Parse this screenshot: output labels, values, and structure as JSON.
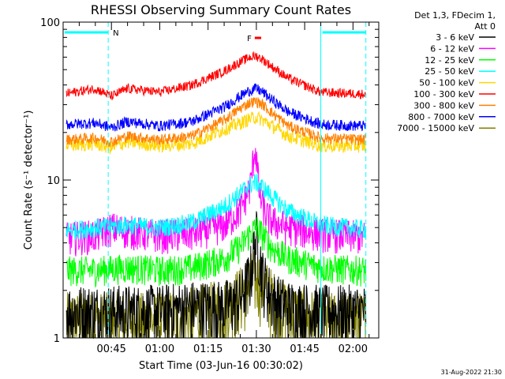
{
  "chart_data": {
    "type": "line",
    "title": "RHESSI Observing Summary Count Rates",
    "xlabel": "Start Time (03-Jun-16 00:30:02)",
    "ylabel": "Count Rate (s⁻¹ detector⁻¹)",
    "y_scale": "log",
    "ylim": [
      1,
      100
    ],
    "xlim_minutes": [
      30.0,
      128.0
    ],
    "x_ticks": [
      {
        "label": "00:45",
        "minute": 45
      },
      {
        "label": "01:00",
        "minute": 60
      },
      {
        "label": "01:15",
        "minute": 75
      },
      {
        "label": "01:30",
        "minute": 90
      },
      {
        "label": "01:45",
        "minute": 105
      },
      {
        "label": "02:00",
        "minute": 120
      }
    ],
    "y_ticks": [
      {
        "label": "1",
        "value": 1
      },
      {
        "label": "10",
        "value": 10
      },
      {
        "label": "100",
        "value": 100
      }
    ],
    "legend_header": [
      "Det 1,3, FDecim 1,",
      "Att 0"
    ],
    "legend_placement": "right",
    "night_bars": [
      {
        "label": "N",
        "start_minute": 30.0,
        "end_minute": 44.0
      },
      {
        "label": "",
        "start_minute": 110.0,
        "end_minute": 124.0
      }
    ],
    "flare_marker": {
      "label": "F",
      "start_minute": 89.5,
      "end_minute": 91.5
    },
    "series": [
      {
        "name": "3 - 6 keV",
        "color": "#000000",
        "minutes": [
          30,
          40,
          50,
          60,
          70,
          80,
          85,
          88,
          90,
          92,
          95,
          100,
          110,
          124
        ],
        "values": [
          1.5,
          1.5,
          1.5,
          1.5,
          1.6,
          1.6,
          1.8,
          2.5,
          4.5,
          2.5,
          1.8,
          1.6,
          1.5,
          1.5
        ]
      },
      {
        "name": "6 - 12 keV",
        "color": "#ff00ff",
        "minutes": [
          30,
          40,
          45,
          50,
          60,
          70,
          80,
          85,
          88,
          89.5,
          90,
          91,
          93,
          95,
          100,
          110,
          124
        ],
        "values": [
          4.3,
          4.5,
          5.0,
          4.8,
          4.5,
          4.6,
          5.2,
          6.5,
          9.0,
          16.0,
          14.0,
          8.0,
          6.0,
          5.5,
          5.0,
          4.6,
          4.4
        ]
      },
      {
        "name": "12 - 25 keV",
        "color": "#00ff00",
        "minutes": [
          30,
          40,
          50,
          60,
          70,
          80,
          85,
          88,
          90,
          92,
          95,
          100,
          110,
          124
        ],
        "values": [
          2.7,
          2.7,
          2.8,
          2.7,
          2.8,
          3.2,
          3.8,
          4.6,
          5.0,
          4.5,
          3.7,
          3.2,
          2.8,
          2.7
        ]
      },
      {
        "name": "25 - 50 keV",
        "color": "#00ffff",
        "minutes": [
          30,
          40,
          50,
          60,
          70,
          80,
          85,
          88,
          90,
          92,
          95,
          100,
          110,
          124
        ],
        "values": [
          4.8,
          5.0,
          5.2,
          5.0,
          5.4,
          6.8,
          8.3,
          9.4,
          9.7,
          9.0,
          7.8,
          6.4,
          5.2,
          4.9
        ]
      },
      {
        "name": "50 - 100 keV",
        "color": "#ffd700",
        "minutes": [
          30,
          40,
          45,
          50,
          60,
          70,
          80,
          85,
          88,
          90,
          92,
          95,
          100,
          110,
          124
        ],
        "values": [
          16.5,
          17.0,
          16.0,
          17.5,
          16.5,
          17.0,
          21.0,
          23.0,
          24.5,
          25.0,
          24.0,
          22.0,
          19.0,
          16.5,
          16.5
        ]
      },
      {
        "name": "100 - 300 keV",
        "color": "#ff0000",
        "minutes": [
          30,
          40,
          45,
          50,
          60,
          70,
          80,
          85,
          88,
          90,
          92,
          95,
          100,
          110,
          124
        ],
        "values": [
          35,
          38,
          34,
          38,
          36,
          40,
          49,
          56,
          60,
          61,
          58,
          52,
          44,
          36,
          35
        ]
      },
      {
        "name": "300 - 800 keV",
        "color": "#ff8000",
        "minutes": [
          30,
          40,
          45,
          50,
          60,
          70,
          80,
          85,
          88,
          90,
          92,
          95,
          100,
          110,
          124
        ],
        "values": [
          18.0,
          18.5,
          17.5,
          19.0,
          18.0,
          19.0,
          24.0,
          28.5,
          31.0,
          31.5,
          30.0,
          26.5,
          22.0,
          18.5,
          18.0
        ]
      },
      {
        "name": "800 - 7000 keV",
        "color": "#0000ff",
        "minutes": [
          30,
          40,
          45,
          50,
          60,
          70,
          80,
          85,
          88,
          90,
          92,
          95,
          100,
          110,
          124
        ],
        "values": [
          22.5,
          23.0,
          21.5,
          23.5,
          22.0,
          23.5,
          29.0,
          34.0,
          37.0,
          38.0,
          36.0,
          32.0,
          27.0,
          22.5,
          22.0
        ]
      },
      {
        "name": "7000 - 15000 keV",
        "color": "#808000",
        "minutes": [
          30,
          40,
          50,
          60,
          70,
          80,
          85,
          88,
          90,
          92,
          95,
          100,
          110,
          124
        ],
        "values": [
          1.3,
          1.3,
          1.3,
          1.3,
          1.4,
          1.6,
          1.9,
          2.3,
          2.5,
          2.2,
          1.8,
          1.5,
          1.3,
          1.3
        ]
      }
    ]
  },
  "footer": {
    "date_stamp": "31-Aug-2022 21:30"
  }
}
